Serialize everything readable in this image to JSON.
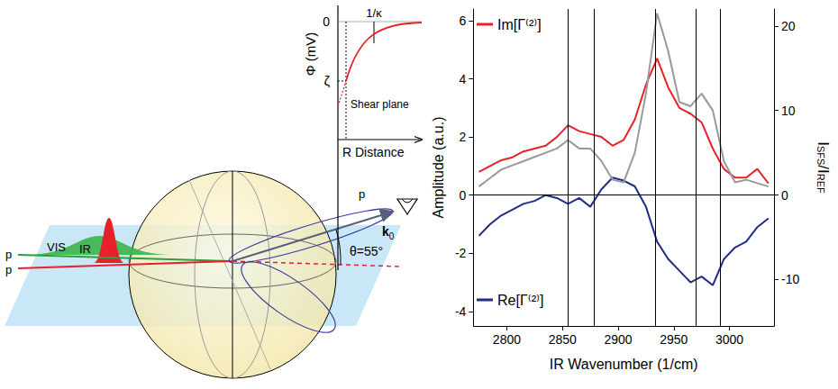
{
  "diagram": {
    "inset": {
      "y_label": "Φ (mV)",
      "zero_label": "0",
      "decay_label": "1/κ",
      "zeta_label": "ζ",
      "shear_label": "Shear plane",
      "x_label": "R Distance"
    },
    "beams": {
      "vis": "VIS",
      "ir": "IR",
      "input_polarizations": [
        "p",
        "p"
      ],
      "output_polarization": "p",
      "wavevector": "k",
      "wavevector_subscript": "0",
      "angle": "θ=55°"
    }
  },
  "chart_data": {
    "type": "line",
    "x_label": "IR Wavenumber (1/cm)",
    "y_label": "Amplitude (a.u.)",
    "y2_label": [
      {
        "text": "I"
      },
      {
        "text": "SFS",
        "sub": true
      },
      {
        "text": "/I"
      },
      {
        "text": "REF",
        "sub": true
      }
    ],
    "xlim": [
      2770,
      3040
    ],
    "xticks": [
      2800,
      2850,
      2900,
      2950,
      3000
    ],
    "ylim": [
      -4.5,
      6.4
    ],
    "yticks": [
      -4,
      -2,
      0,
      2,
      4,
      6
    ],
    "y2lim": [
      -15.5,
      22
    ],
    "y2ticks": [
      -10,
      0,
      10,
      20
    ],
    "grid": false,
    "vertical_lines": [
      2855,
      2878,
      2933,
      2970,
      2992
    ],
    "horizontal_lines": [
      0
    ],
    "x": [
      2775,
      2785,
      2795,
      2805,
      2815,
      2825,
      2835,
      2845,
      2855,
      2865,
      2875,
      2885,
      2895,
      2905,
      2915,
      2925,
      2935,
      2945,
      2955,
      2965,
      2975,
      2985,
      2995,
      3005,
      3015,
      3025,
      3035
    ],
    "series": [
      {
        "name": "Im[Γ⁽²⁾]",
        "color": "#e8202a",
        "legend": "upper left",
        "values": [
          0.8,
          1.0,
          1.2,
          1.3,
          1.5,
          1.6,
          1.7,
          2.0,
          2.4,
          2.2,
          2.1,
          2.0,
          1.7,
          1.9,
          2.6,
          3.8,
          4.7,
          3.7,
          3.0,
          2.8,
          2.5,
          1.6,
          0.9,
          0.6,
          0.6,
          0.9,
          0.4
        ]
      },
      {
        "name": "Re[Γ⁽²⁾]",
        "color": "#1f2d8a",
        "legend": "lower left",
        "values": [
          -1.4,
          -1.0,
          -0.7,
          -0.5,
          -0.3,
          -0.2,
          0.0,
          -0.1,
          -0.3,
          -0.1,
          -0.4,
          0.2,
          0.6,
          0.5,
          0.3,
          -0.4,
          -1.6,
          -2.2,
          -2.6,
          -3.0,
          -2.8,
          -3.1,
          -2.2,
          -1.8,
          -1.6,
          -1.1,
          -0.8
        ]
      },
      {
        "color": "#999999",
        "axis": "y2",
        "values": [
          1.0,
          2.0,
          3.0,
          3.5,
          4.0,
          4.5,
          5.0,
          5.5,
          6.5,
          5.5,
          5.5,
          4.0,
          1.8,
          1.5,
          5.0,
          12.0,
          21.5,
          17.0,
          11.0,
          10.5,
          12.0,
          10.0,
          4.0,
          1.5,
          1.8,
          1.4,
          1.0
        ]
      }
    ]
  }
}
